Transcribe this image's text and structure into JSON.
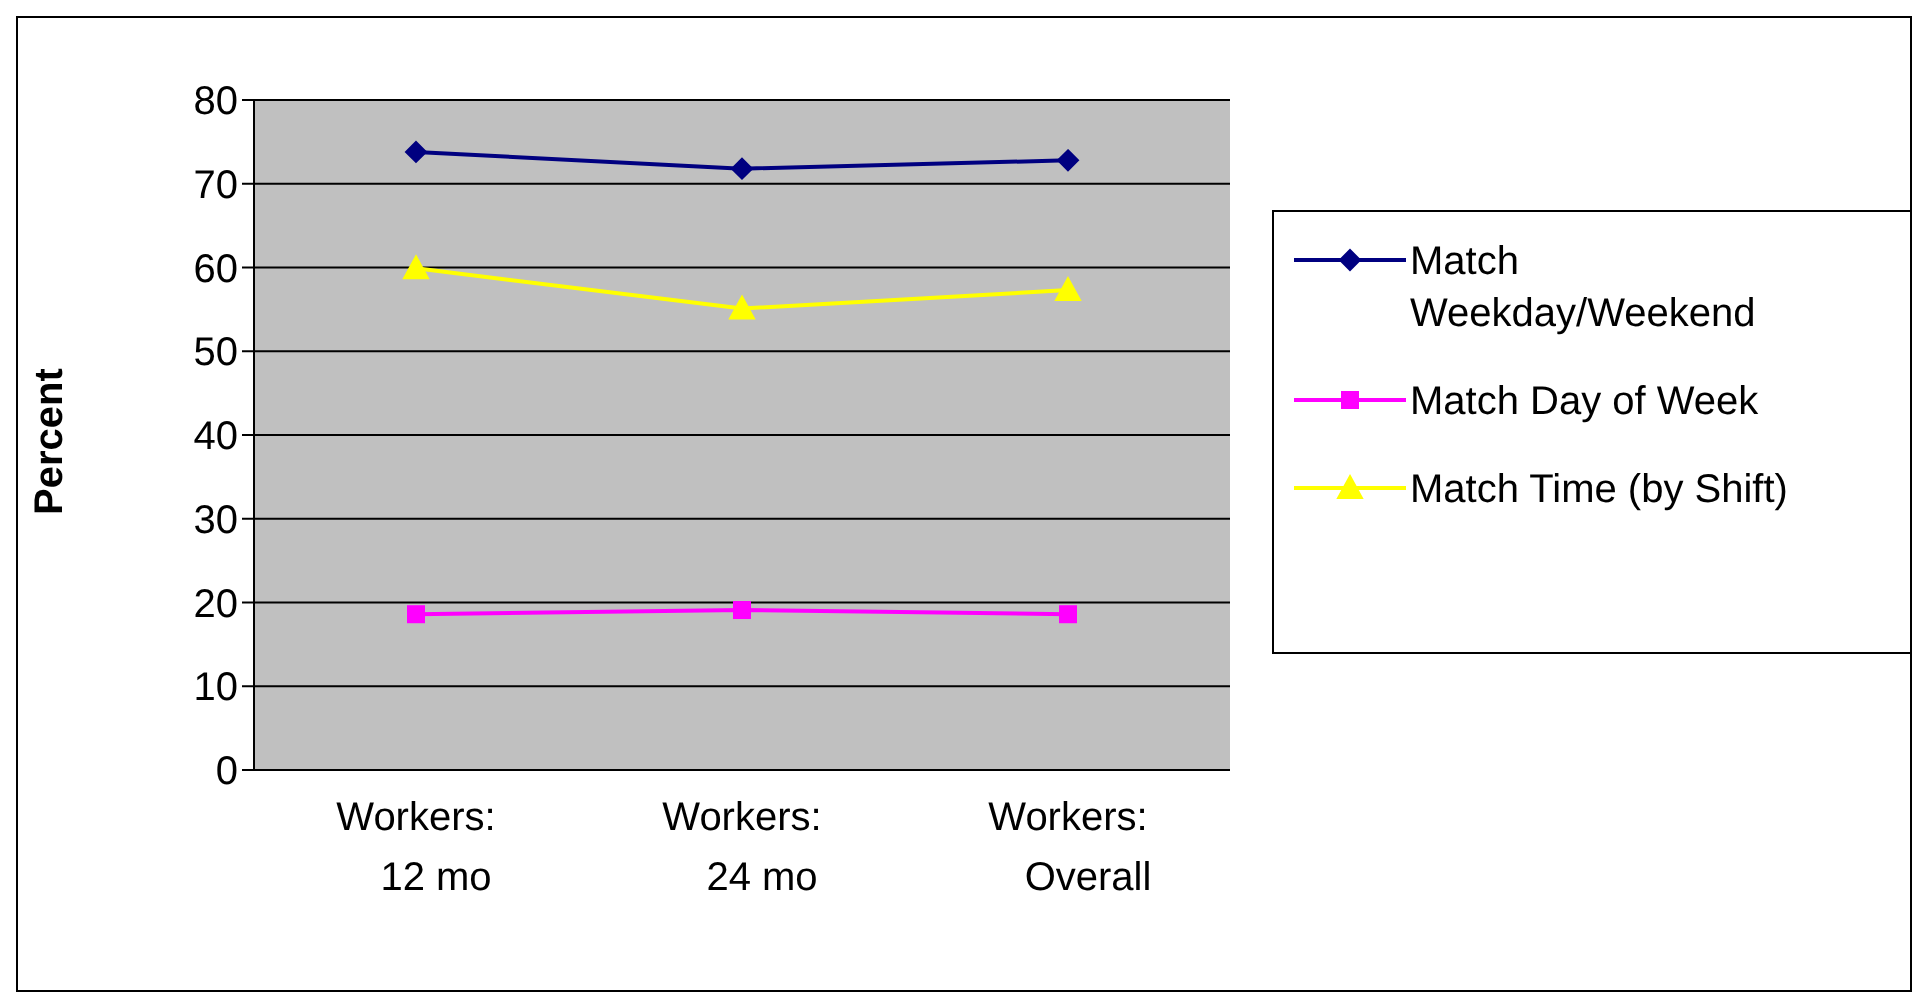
{
  "chart_data": {
    "type": "line",
    "ylabel": "Percent",
    "categories": [
      "Workers: 12 mo",
      "Workers: 24 mo",
      "Workers: Overall"
    ],
    "series": [
      {
        "name": "Match Weekday/Weekend",
        "color": "#000080",
        "marker": "diamond",
        "values": [
          73.8,
          71.8,
          72.8
        ]
      },
      {
        "name": "Match Day of Week",
        "color": "#ff00ff",
        "marker": "square",
        "values": [
          18.6,
          19.1,
          18.6
        ]
      },
      {
        "name": "Match Time (by Shift)",
        "color": "#ffff00",
        "marker": "triangle",
        "values": [
          59.9,
          55.1,
          57.3
        ]
      }
    ],
    "ylim": [
      0,
      80
    ],
    "yticks": [
      0,
      10,
      20,
      30,
      40,
      50,
      60,
      70,
      80
    ],
    "grid": "y",
    "legend": "right"
  }
}
